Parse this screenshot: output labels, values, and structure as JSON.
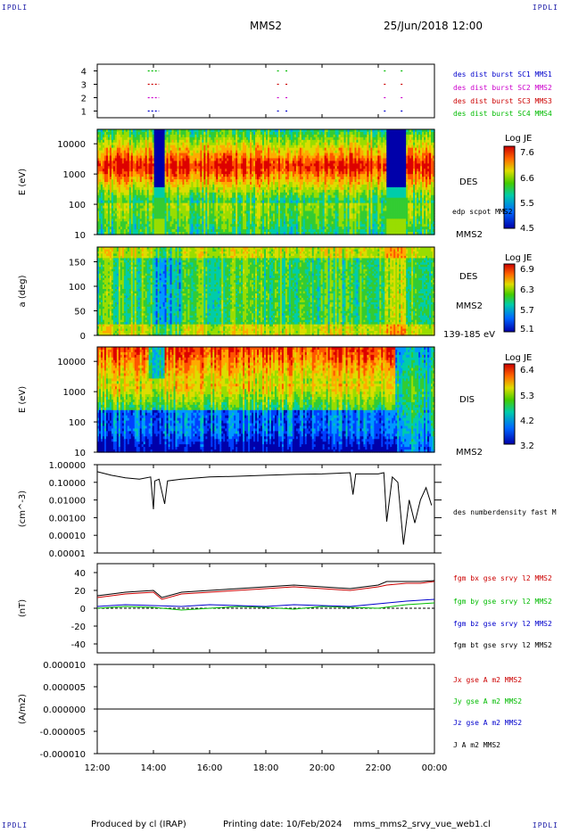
{
  "header": {
    "corner_left_top": "IPDLI",
    "corner_right_top": "IPDLI",
    "corner_left_bottom": "IPDLI",
    "corner_right_bottom": "IPDLI",
    "title": "MMS2",
    "datetime": "25/Jun/2018 12:00"
  },
  "footer": {
    "producer": "Produced by cl (IRAP)",
    "printing_date": "Printing date: 10/Feb/2024",
    "filename": "mms_mms2_srvy_vue_web1.cl"
  },
  "colors": {
    "blue": "#0000cc",
    "magenta": "#cc00cc",
    "red": "#cc0000",
    "green": "#00bb00",
    "black": "#000000"
  },
  "chart_data": [
    {
      "type": "scatter",
      "panel": "burst-coverage",
      "ylim": [
        0.5,
        4.5
      ],
      "yticks": [
        "1",
        "2",
        "3",
        "4"
      ],
      "legend": [
        {
          "name": "des dist burst SC1 MMS1",
          "color": "#0000cc"
        },
        {
          "name": "des dist burst SC2 MMS2",
          "color": "#cc00cc"
        },
        {
          "name": "des dist burst SC3 MMS3",
          "color": "#cc0000"
        },
        {
          "name": "des dist burst SC4 MMS4",
          "color": "#00bb00"
        }
      ],
      "intervals_hours": [
        [
          13.8,
          14.2
        ],
        [
          18.4,
          18.45
        ],
        [
          18.7,
          18.75
        ],
        [
          22.2,
          22.25
        ],
        [
          22.8,
          22.85
        ]
      ]
    },
    {
      "type": "heatmap",
      "panel": "des-energy",
      "ylabel": "E (eV)",
      "log_y": true,
      "ylim": [
        10,
        30000
      ],
      "yticks": [
        "10",
        "100",
        "1000",
        "10000"
      ],
      "right_labels": [
        "DES",
        "edp scpot MMS2",
        "MMS2"
      ],
      "colorbar": {
        "title": "Log JE",
        "ticks": [
          "7.6",
          "6.6",
          "5.5",
          "4.5"
        ]
      },
      "gaps_hours": [
        [
          14.0,
          14.4
        ],
        [
          22.3,
          23.0
        ]
      ]
    },
    {
      "type": "heatmap",
      "panel": "des-pitch-angle",
      "ylabel": "a (deg)",
      "ylim": [
        0,
        180
      ],
      "yticks": [
        "0",
        "50",
        "100",
        "150"
      ],
      "right_labels": [
        "DES",
        "MMS2",
        "139-185 eV"
      ],
      "colorbar": {
        "title": "Log JE",
        "ticks": [
          "6.9",
          "6.3",
          "5.7",
          "5.1"
        ]
      }
    },
    {
      "type": "heatmap",
      "panel": "dis-energy",
      "ylabel": "E (eV)",
      "log_y": true,
      "ylim": [
        10,
        30000
      ],
      "yticks": [
        "10",
        "100",
        "1000",
        "10000"
      ],
      "right_labels": [
        "DIS",
        "MMS2"
      ],
      "colorbar": {
        "title": "Log JE",
        "ticks": [
          "6.4",
          "5.3",
          "4.2",
          "3.2"
        ]
      }
    },
    {
      "type": "line",
      "panel": "density",
      "ylabel": "(cm^-3)",
      "log_y": true,
      "ylim": [
        1e-05,
        1.0
      ],
      "yticks": [
        "1.00000",
        "0.10000",
        "0.01000",
        "0.00100",
        "0.00010",
        "0.00001"
      ],
      "series": [
        {
          "name": "des numberdensity fast M",
          "color": "#000000",
          "x": [
            12.0,
            12.5,
            13.0,
            13.5,
            13.9,
            14.0,
            14.05,
            14.2,
            14.4,
            14.5,
            15.0,
            16.0,
            17.0,
            18.0,
            19.0,
            20.0,
            21.0,
            21.1,
            21.2,
            21.5,
            22.0,
            22.2,
            22.3,
            22.5,
            22.7,
            22.9,
            23.1,
            23.3,
            23.5,
            23.7,
            23.9
          ],
          "values": [
            0.4,
            0.25,
            0.18,
            0.15,
            0.2,
            0.003,
            0.12,
            0.15,
            0.006,
            0.12,
            0.15,
            0.2,
            0.22,
            0.25,
            0.28,
            0.3,
            0.35,
            0.02,
            0.3,
            0.3,
            0.3,
            0.35,
            0.0006,
            0.2,
            0.1,
            3e-05,
            0.01,
            0.0005,
            0.01,
            0.05,
            0.005
          ]
        }
      ]
    },
    {
      "type": "line",
      "panel": "magnetic-field",
      "ylabel": "(nT)",
      "ylim": [
        -50,
        50
      ],
      "yticks": [
        "40",
        "20",
        "0",
        "-20",
        "-40"
      ],
      "series": [
        {
          "name": "fgm bx gse srvy l2 MMS2",
          "color": "#cc0000",
          "x": [
            12.0,
            13.0,
            14.0,
            14.3,
            15.0,
            16.0,
            17.0,
            18.0,
            19.0,
            20.0,
            21.0,
            22.0,
            22.3,
            23.0,
            23.5,
            24.0
          ],
          "values": [
            12,
            16,
            18,
            10,
            16,
            18,
            20,
            22,
            24,
            22,
            20,
            24,
            26,
            28,
            28,
            30
          ]
        },
        {
          "name": "fgm by gse srvy l2 MMS2",
          "color": "#00bb00",
          "x": [
            12.0,
            13.0,
            14.0,
            15.0,
            16.0,
            17.0,
            18.0,
            19.0,
            20.0,
            21.0,
            22.0,
            23.0,
            24.0
          ],
          "values": [
            0,
            2,
            1,
            -2,
            0,
            2,
            1,
            -1,
            2,
            1,
            0,
            4,
            6
          ]
        },
        {
          "name": "fgm bz gse srvy l2 MMS2",
          "color": "#0000cc",
          "x": [
            12.0,
            13.0,
            14.0,
            15.0,
            16.0,
            17.0,
            18.0,
            19.0,
            20.0,
            21.0,
            22.0,
            23.0,
            24.0
          ],
          "values": [
            2,
            4,
            3,
            2,
            4,
            3,
            2,
            4,
            3,
            2,
            5,
            8,
            10
          ]
        },
        {
          "name": "fgm bt gse srvy l2 MMS2",
          "color": "#000000",
          "x": [
            12.0,
            13.0,
            14.0,
            14.3,
            15.0,
            16.0,
            17.0,
            18.0,
            19.0,
            20.0,
            21.0,
            22.0,
            22.3,
            23.0,
            23.5,
            24.0
          ],
          "values": [
            14,
            18,
            20,
            12,
            18,
            20,
            22,
            24,
            26,
            24,
            22,
            26,
            30,
            30,
            30,
            31
          ]
        }
      ]
    },
    {
      "type": "line",
      "panel": "current-density",
      "ylabel": "(A/m2)",
      "ylim": [
        -1e-05,
        1e-05
      ],
      "yticks": [
        "0.000010",
        "0.000005",
        "0.000000",
        "-0.000005",
        "-0.000010"
      ],
      "series": [
        {
          "name": "Jx gse A m2 MMS2",
          "color": "#cc0000",
          "x": [
            12.0,
            24.0
          ],
          "values": [
            0,
            0
          ]
        },
        {
          "name": "Jy gse A m2 MMS2",
          "color": "#00bb00",
          "x": [
            12.0,
            24.0
          ],
          "values": [
            0,
            0
          ]
        },
        {
          "name": "Jz gse A m2 MMS2",
          "color": "#0000cc",
          "x": [
            12.0,
            24.0
          ],
          "values": [
            0,
            0
          ]
        },
        {
          "name": "J A m2 MMS2",
          "color": "#000000",
          "x": [
            12.0,
            24.0
          ],
          "values": [
            0,
            0
          ]
        }
      ]
    }
  ],
  "x_axis": {
    "ticks": [
      "12:00",
      "14:00",
      "16:00",
      "18:00",
      "20:00",
      "22:00",
      "00:00"
    ],
    "range_hours": [
      12,
      24
    ]
  }
}
